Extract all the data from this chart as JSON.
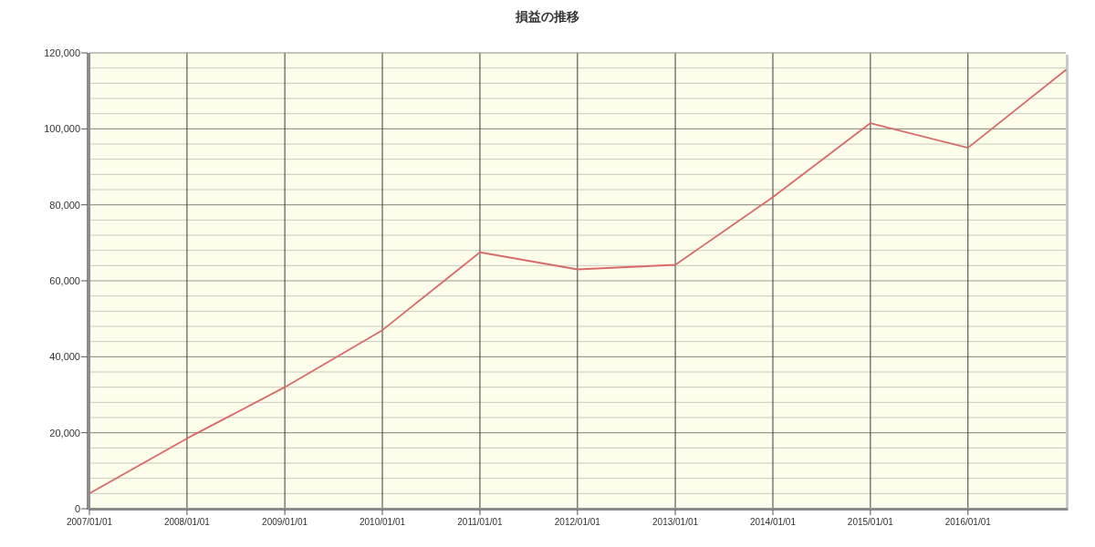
{
  "chart_data": {
    "type": "line",
    "title": "損益の推移",
    "x": [
      "2007-01-01",
      "2008-01-01",
      "2009-01-01",
      "2010-01-01",
      "2011-01-01",
      "2012-01-01",
      "2013-01-01",
      "2014-01-01",
      "2015-01-01",
      "2016-01-01",
      "2017-01-01"
    ],
    "values": [
      4000,
      18500,
      32000,
      47000,
      67500,
      63000,
      64200,
      82000,
      101500,
      95000,
      115500
    ],
    "color": "#d86a6a",
    "xlim": [
      "2007-01-01",
      "2017-01-01"
    ],
    "xticks": [
      {
        "value": "2007-01-01",
        "label": "2007/01/01"
      },
      {
        "value": "2008-01-01",
        "label": "2008/01/01"
      },
      {
        "value": "2009-01-01",
        "label": "2009/01/01"
      },
      {
        "value": "2010-01-01",
        "label": "2010/01/01"
      },
      {
        "value": "2011-01-01",
        "label": "2011/01/01"
      },
      {
        "value": "2012-01-01",
        "label": "2012/01/01"
      },
      {
        "value": "2013-01-01",
        "label": "2013/01/01"
      },
      {
        "value": "2014-01-01",
        "label": "2014/01/01"
      },
      {
        "value": "2015-01-01",
        "label": "2015/01/01"
      },
      {
        "value": "2016-01-01",
        "label": "2016/01/01"
      }
    ],
    "ylim": [
      0,
      120000
    ],
    "yticks": [
      0,
      {
        "value": 4000,
        "label": null
      },
      {
        "value": 8000,
        "label": null
      },
      {
        "value": 12000,
        "label": null
      },
      {
        "value": 16000,
        "label": null
      },
      {
        "value": 20000,
        "label": "20,000"
      },
      {
        "value": 24000,
        "label": null
      },
      {
        "value": 28000,
        "label": null
      },
      {
        "value": 32000,
        "label": null
      },
      {
        "value": 36000,
        "label": null
      },
      {
        "value": 40000,
        "label": "40,000"
      },
      {
        "value": 44000,
        "label": null
      },
      {
        "value": 48000,
        "label": null
      },
      {
        "value": 52000,
        "label": null
      },
      {
        "value": 56000,
        "label": null
      },
      {
        "value": 60000,
        "label": "60,000"
      },
      {
        "value": 64000,
        "label": null
      },
      {
        "value": 68000,
        "label": null
      },
      {
        "value": 72000,
        "label": null
      },
      {
        "value": 76000,
        "label": null
      },
      {
        "value": 80000,
        "label": "80,000"
      },
      {
        "value": 84000,
        "label": null
      },
      {
        "value": 88000,
        "label": null
      },
      {
        "value": 92000,
        "label": null
      },
      {
        "value": 96000,
        "label": null
      },
      {
        "value": 100000,
        "label": "100,000"
      },
      {
        "value": 104000,
        "label": null
      },
      {
        "value": 108000,
        "label": null
      },
      {
        "value": 112000,
        "label": null
      },
      {
        "value": 116000,
        "label": null
      },
      {
        "value": 120000,
        "label": "120,000"
      }
    ],
    "grid": true
  }
}
